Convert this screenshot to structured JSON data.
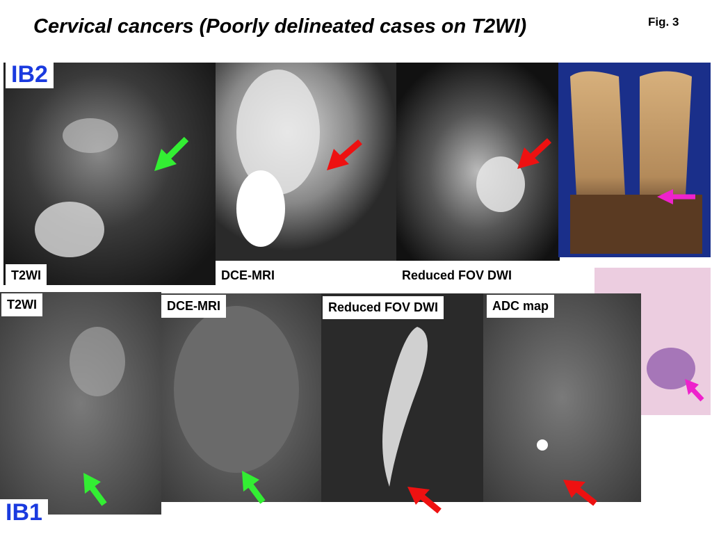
{
  "header": {
    "title": "Cervical cancers (Poorly delineated cases on T2WI)",
    "figure_label": "Fig. 3"
  },
  "cases": [
    {
      "stage": "IB2",
      "panels": [
        "T2WI",
        "DCE-MRI",
        "Reduced FOV DWI"
      ]
    },
    {
      "stage": "IB1",
      "panels": [
        "T2WI",
        "DCE-MRI",
        "Reduced FOV DWI",
        "ADC map"
      ]
    }
  ]
}
